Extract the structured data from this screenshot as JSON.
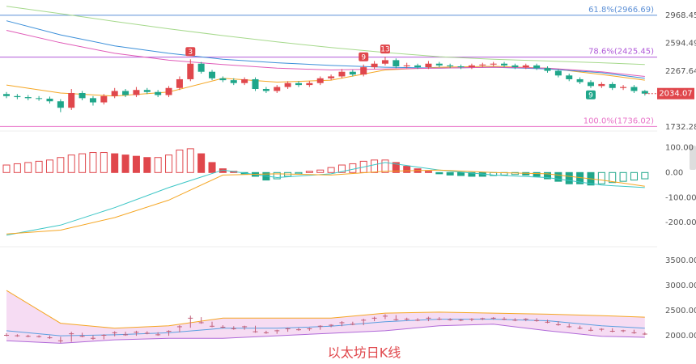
{
  "chart_data": [
    {
      "type": "candlestick",
      "log_y": true,
      "ylim": [
        1725,
        3194
      ],
      "yticks": [
        2968.45,
        2594.49,
        2267.64,
        1732.28
      ],
      "up_color": "#e0474c",
      "down_color": "#1fa68a",
      "open": [
        2030,
        2010,
        2000,
        1990,
        1985,
        1960,
        1900,
        2040,
        1990,
        1950,
        2010,
        2060,
        2020,
        2070,
        2050,
        2020,
        2090,
        2180,
        2350,
        2260,
        2190,
        2170,
        2140,
        2180,
        2080,
        2060,
        2100,
        2140,
        2120,
        2140,
        2190,
        2210,
        2260,
        2230,
        2310,
        2350,
        2390,
        2320,
        2330,
        2310,
        2350,
        2330,
        2320,
        2310,
        2330,
        2340,
        2350,
        2330,
        2310,
        2330,
        2300,
        2270,
        2220,
        2180,
        2150,
        2110,
        2130,
        2090,
        2100,
        2060
      ],
      "high": [
        2050,
        2030,
        2020,
        2010,
        2005,
        1980,
        2080,
        2060,
        2010,
        2030,
        2090,
        2080,
        2100,
        2090,
        2070,
        2110,
        2210,
        2400,
        2370,
        2280,
        2210,
        2190,
        2200,
        2200,
        2100,
        2120,
        2160,
        2160,
        2160,
        2210,
        2230,
        2290,
        2280,
        2340,
        2380,
        2430,
        2410,
        2360,
        2350,
        2380,
        2370,
        2350,
        2340,
        2350,
        2360,
        2370,
        2370,
        2350,
        2350,
        2350,
        2320,
        2290,
        2240,
        2200,
        2170,
        2150,
        2150,
        2120,
        2120,
        2070
      ],
      "low": [
        1990,
        1980,
        1970,
        1965,
        1940,
        1860,
        1880,
        1970,
        1920,
        1930,
        1990,
        2000,
        2000,
        2030,
        2000,
        2000,
        2070,
        2160,
        2240,
        2170,
        2150,
        2120,
        2120,
        2060,
        2040,
        2040,
        2080,
        2100,
        2100,
        2120,
        2170,
        2190,
        2210,
        2210,
        2290,
        2330,
        2300,
        2300,
        2290,
        2290,
        2310,
        2300,
        2290,
        2290,
        2310,
        2320,
        2310,
        2290,
        2290,
        2280,
        2250,
        2200,
        2160,
        2130,
        2090,
        2090,
        2070,
        2070,
        2040,
        2015
      ],
      "close": [
        2010,
        2000,
        1990,
        1985,
        1960,
        1900,
        2040,
        1990,
        1950,
        2010,
        2060,
        2020,
        2070,
        2050,
        2020,
        2090,
        2180,
        2350,
        2260,
        2190,
        2170,
        2140,
        2180,
        2080,
        2060,
        2100,
        2140,
        2120,
        2140,
        2190,
        2210,
        2260,
        2230,
        2310,
        2350,
        2390,
        2320,
        2330,
        2310,
        2350,
        2330,
        2320,
        2310,
        2330,
        2340,
        2350,
        2330,
        2310,
        2330,
        2300,
        2270,
        2220,
        2180,
        2150,
        2110,
        2130,
        2090,
        2100,
        2060,
        2034.07
      ],
      "markers_above": [
        null,
        null,
        null,
        null,
        null,
        null,
        null,
        null,
        null,
        null,
        null,
        null,
        null,
        null,
        null,
        null,
        null,
        "3",
        null,
        null,
        null,
        null,
        null,
        null,
        null,
        null,
        null,
        null,
        null,
        null,
        null,
        null,
        null,
        "9",
        null,
        "13",
        null,
        null,
        null,
        null,
        null,
        null,
        null,
        null,
        null,
        null,
        null,
        null,
        null,
        null,
        null,
        null,
        null,
        null,
        null,
        null,
        null,
        null,
        null,
        null
      ],
      "markers_below": [
        null,
        null,
        null,
        null,
        null,
        null,
        null,
        null,
        null,
        null,
        null,
        null,
        null,
        null,
        null,
        null,
        null,
        null,
        null,
        null,
        null,
        null,
        null,
        null,
        null,
        null,
        null,
        null,
        null,
        null,
        null,
        null,
        null,
        null,
        null,
        null,
        null,
        null,
        null,
        null,
        null,
        null,
        null,
        null,
        null,
        null,
        null,
        null,
        null,
        null,
        null,
        null,
        null,
        null,
        "9",
        null,
        null,
        null,
        null,
        null
      ],
      "ma": [
        {
          "color": "#f5a623",
          "x": [
            0,
            5,
            10,
            15,
            20,
            25,
            30,
            35,
            40,
            45,
            50,
            55,
            59
          ],
          "values": [
            2120,
            2040,
            2010,
            2050,
            2190,
            2150,
            2170,
            2280,
            2310,
            2320,
            2300,
            2230,
            2170
          ]
        },
        {
          "color": "#3b8fd9",
          "x": [
            0,
            5,
            10,
            15,
            20,
            25,
            30,
            35,
            40,
            45,
            50,
            55,
            59
          ],
          "values": [
            2890,
            2700,
            2560,
            2470,
            2400,
            2360,
            2330,
            2310,
            2300,
            2310,
            2290,
            2250,
            2190
          ]
        },
        {
          "color": "#e05bb8",
          "x": [
            0,
            5,
            10,
            15,
            20,
            25,
            30,
            35,
            40,
            45,
            50,
            55,
            59
          ],
          "values": [
            2760,
            2600,
            2470,
            2390,
            2340,
            2300,
            2280,
            2290,
            2300,
            2310,
            2300,
            2260,
            2210
          ]
        },
        {
          "color": "#a6d98c",
          "x": [
            0,
            5,
            10,
            15,
            20,
            25,
            30,
            35,
            40,
            45,
            50,
            55,
            59
          ],
          "values": [
            3100,
            2990,
            2880,
            2780,
            2690,
            2610,
            2540,
            2480,
            2430,
            2400,
            2380,
            2360,
            2340
          ]
        }
      ],
      "levels": [
        {
          "value": 2966.69,
          "label": "61.8%(2966.69)",
          "color": "#5b8fd6"
        },
        {
          "value": 2425.45,
          "label": "78.6%(2425.45)",
          "color": "#b05ad8"
        },
        {
          "value": 1736.02,
          "label": "100.0%(1736.02)",
          "color": "#e872c8"
        }
      ]
    },
    {
      "type": "macd",
      "ylim": [
        -280,
        156
      ],
      "yticks": [
        {
          "value": 100,
          "label": "100.00"
        },
        {
          "value": 0,
          "label": "0.00"
        },
        {
          "value": -100,
          "label": "-100.00"
        },
        {
          "value": -200,
          "label": "-200.00"
        }
      ],
      "up_color": "#e0474c",
      "down_color": "#1fa68a",
      "histogram": [
        30,
        35,
        40,
        45,
        50,
        60,
        70,
        75,
        80,
        80,
        75,
        70,
        65,
        60,
        60,
        70,
        90,
        95,
        75,
        40,
        15,
        5,
        -5,
        -15,
        -30,
        -25,
        -15,
        -5,
        5,
        10,
        20,
        30,
        35,
        45,
        50,
        50,
        40,
        25,
        15,
        5,
        -5,
        -10,
        -12,
        -15,
        -15,
        -12,
        -10,
        -8,
        -10,
        -15,
        -25,
        -35,
        -45,
        -45,
        -50,
        -45,
        -40,
        -35,
        -30,
        -25
      ],
      "series": [
        {
          "color": "#3cc6c6",
          "x": [
            0,
            5,
            10,
            15,
            20,
            25,
            30,
            35,
            40,
            45,
            50,
            55,
            59
          ],
          "values": [
            -250,
            -210,
            -140,
            -60,
            10,
            -20,
            -5,
            40,
            10,
            -10,
            -20,
            -50,
            -60
          ]
        },
        {
          "color": "#f5a623",
          "x": [
            0,
            5,
            10,
            15,
            20,
            25,
            30,
            35,
            40,
            45,
            50,
            55,
            59
          ],
          "values": [
            -245,
            -230,
            -180,
            -110,
            -10,
            -5,
            -10,
            5,
            10,
            0,
            -5,
            -30,
            -55
          ]
        }
      ]
    },
    {
      "type": "band",
      "ylim": [
        1600,
        3690
      ],
      "yticks": [
        {
          "value": 3500,
          "label": "3500.00"
        },
        {
          "value": 3000,
          "label": "3000.00"
        },
        {
          "value": 2500,
          "label": "2500.00"
        },
        {
          "value": 2000,
          "label": "2000.00"
        }
      ],
      "fill": "#f6dcf3",
      "price_color": "#c0607a",
      "series": [
        {
          "color": "#f5a623",
          "x": [
            0,
            5,
            10,
            15,
            20,
            25,
            30,
            35,
            40,
            45,
            50,
            55,
            59
          ],
          "values": [
            2900,
            2250,
            2150,
            2200,
            2350,
            2350,
            2350,
            2450,
            2470,
            2450,
            2430,
            2400,
            2370
          ]
        },
        {
          "color": "#5b9fe0",
          "x": [
            0,
            5,
            10,
            15,
            20,
            25,
            30,
            35,
            40,
            45,
            50,
            55,
            59
          ],
          "values": [
            2100,
            2000,
            2020,
            2060,
            2150,
            2150,
            2190,
            2280,
            2330,
            2330,
            2300,
            2200,
            2150
          ]
        },
        {
          "color": "#b06ad8",
          "x": [
            0,
            5,
            10,
            15,
            20,
            25,
            30,
            35,
            40,
            45,
            50,
            55,
            59
          ],
          "values": [
            1900,
            1850,
            1920,
            1950,
            1950,
            2000,
            2050,
            2100,
            2200,
            2230,
            2100,
            1990,
            1970
          ]
        }
      ]
    }
  ],
  "caption": "以太坊日K线"
}
